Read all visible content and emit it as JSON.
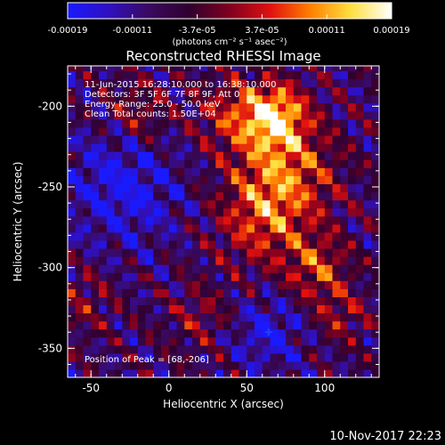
{
  "chart_data": {
    "type": "heatmap",
    "title": "Reconstructed RHESSI Image",
    "xlabel": "Heliocentric X (arcsec)",
    "ylabel": "Heliocentric Y (arcsec)",
    "xlim": [
      -65,
      135
    ],
    "ylim": [
      -368,
      -175
    ],
    "x_ticks": [
      -50,
      0,
      50,
      100
    ],
    "y_ticks": [
      -350,
      -300,
      -250,
      -200
    ],
    "x_tick_labels": [
      "-50",
      "0",
      "50",
      "100"
    ],
    "y_tick_labels": [
      "-350",
      "-300",
      "-250",
      "-200"
    ],
    "colorbar": {
      "vmin": -0.00019,
      "vmax": 0.00019,
      "tick_labels": [
        "-0.00019",
        "-0.00011",
        "-3.7e-05",
        "3.7e-05",
        "0.00011",
        "0.00019"
      ],
      "unit_label": "(photons cm⁻² s⁻¹ asec⁻²)",
      "colors": [
        "#1a1aff",
        "#3010c0",
        "#3a0a60",
        "#300030",
        "#800020",
        "#e01010",
        "#ff8000",
        "#ffe040",
        "#ffffff"
      ]
    },
    "annotations": {
      "time_range": "11-Jun-2015 16:28:10.000 to 16:38:10.000",
      "detectors": "Detectors: 3F 5F 6F 7F 8F 9F, Att 0",
      "energy": "Energy Range: 25.0 - 50.0 keV",
      "clean": "Clean     Total counts: 1.50E+04",
      "peak": "Position of Peak = [68,-206]"
    },
    "peak": {
      "x": 68,
      "y": -206
    },
    "marker": {
      "x": 64,
      "y": -340
    }
  },
  "footer": {
    "timestamp": "10-Nov-2017 22:23"
  }
}
